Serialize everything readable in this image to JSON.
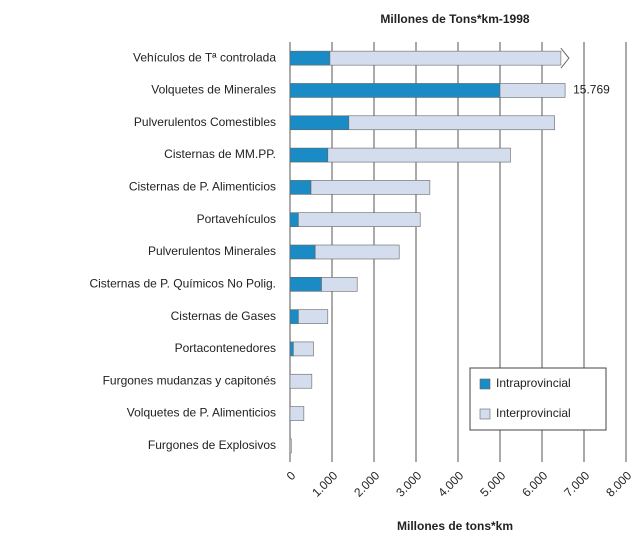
{
  "chart_data": {
    "type": "stacked-barh",
    "title": "Millones de Tons*km-1998",
    "x_label": "Millones de tons*km",
    "categories": [
      "Vehículos de Tª controlada",
      "Volquetes de Minerales",
      "Pulverulentos Comestibles",
      "Cisternas de MM.PP.",
      "Cisternas de P. Alimenticios",
      "Portavehículos",
      "Pulverulentos Minerales",
      "Cisternas de P. Químicos No Polig.",
      "Cisternas de Gases",
      "Portacontenedores",
      "Furgones mudanzas y capitonés",
      "Volquetes de P. Alimenticios",
      "Furgones de Explosivos"
    ],
    "series": [
      {
        "name": "Intraprovincial",
        "color": "#1a8bc4",
        "values": [
          950,
          5000,
          1400,
          900,
          500,
          200,
          600,
          750,
          200,
          80,
          0,
          0,
          0
        ]
      },
      {
        "name": "Interprovincial",
        "color": "#d3ddee",
        "values": [
          5500,
          1550,
          4900,
          4350,
          2830,
          2900,
          2000,
          850,
          700,
          480,
          520,
          330,
          30
        ]
      }
    ],
    "annotations": [
      {
        "text": "15.769"
      }
    ],
    "xlim": [
      0,
      8000
    ],
    "xticks": [
      0,
      {
        "value": 1000,
        "label": "1.000"
      },
      {
        "value": 2000,
        "label": "2.000"
      },
      {
        "value": 3000,
        "label": "3.000"
      },
      {
        "value": 4000,
        "label": "4.000"
      },
      {
        "value": 5000,
        "label": "5.000"
      },
      {
        "value": 6000,
        "label": "6.000"
      },
      {
        "value": 7000,
        "label": "7.000"
      },
      {
        "value": 8000,
        "label": "8.000"
      }
    ],
    "grid": true,
    "legend": "lower right"
  }
}
